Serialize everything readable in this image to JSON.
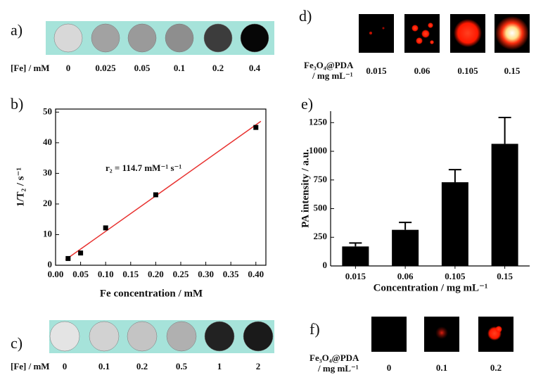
{
  "panels": {
    "a": {
      "label": "a)",
      "row_label": "[Fe] / mM",
      "concentrations": [
        0,
        0.025,
        0.05,
        0.1,
        0.2,
        0.4
      ]
    },
    "c": {
      "label": "c)",
      "row_label": "[Fe] / mM",
      "concentrations": [
        0,
        0.1,
        0.2,
        0.5,
        1,
        2
      ]
    },
    "d": {
      "label": "d)",
      "sample_label": "Fe₃O₄@PDA",
      "unit_label": "/ mg mL⁻¹",
      "concentrations": [
        0.015,
        0.06,
        0.105,
        0.15
      ]
    },
    "f": {
      "label": "f)",
      "sample_label": "Fe₃O₄@PDA",
      "unit_label": "/ mg mL⁻¹",
      "concentrations": [
        0,
        0.1,
        0.2
      ]
    }
  },
  "chart_data": [
    {
      "type": "scatter",
      "label": "b)",
      "xlabel": "Fe concentration / mM",
      "ylabel": "1/T₂ / s⁻¹",
      "annotation": "r₂ = 114.7 mM⁻¹ s⁻¹",
      "points": {
        "x": [
          0.025,
          0.05,
          0.1,
          0.2,
          0.4
        ],
        "values": [
          2.2,
          4,
          12.2,
          23,
          45
        ],
        "color": "#000000"
      },
      "fit": {
        "x": [
          0.02,
          0.41
        ],
        "values": [
          1.8,
          47
        ],
        "color": "#e8312f"
      },
      "xlim": [
        0,
        0.42
      ],
      "ylim": [
        0,
        51
      ],
      "xticks": [
        {
          "value": 0,
          "label": "0.00"
        },
        {
          "value": 0.05,
          "label": "0.05"
        },
        {
          "value": 0.1,
          "label": "0.10"
        },
        {
          "value": 0.15,
          "label": "0.15"
        },
        {
          "value": 0.2,
          "label": "0.20"
        },
        {
          "value": 0.25,
          "label": "0.25"
        },
        {
          "value": 0.3,
          "label": "0.30"
        },
        {
          "value": 0.35,
          "label": "0.35"
        },
        {
          "value": 0.4,
          "label": "0.40"
        }
      ],
      "yticks": [
        0,
        10,
        20,
        30,
        40,
        50
      ]
    },
    {
      "type": "bar",
      "label": "e)",
      "xlabel": "Concentration / mg mL⁻¹",
      "ylabel": "PA intensity / a.u.",
      "categories": [
        "0.015",
        "0.06",
        "0.105",
        "0.15"
      ],
      "values": [
        170,
        315,
        730,
        1065
      ],
      "errors": [
        30,
        65,
        110,
        230
      ],
      "color": "#000000",
      "ylim": [
        0,
        1350
      ],
      "yticks": [
        0,
        250,
        500,
        750,
        1000,
        1250
      ]
    }
  ]
}
